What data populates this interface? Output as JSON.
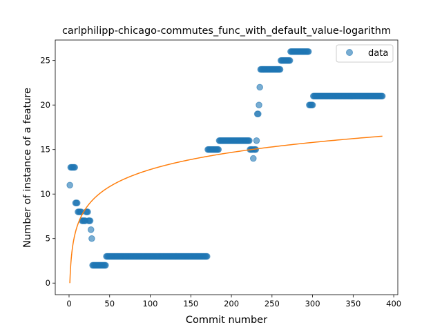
{
  "chart_data": {
    "type": "scatter",
    "title": "carlphilipp-chicago-commutes_func_with_default_value-logarithm",
    "xlabel": "Commit number",
    "ylabel": "Number of instance of a feature",
    "xlim": [
      -17,
      405
    ],
    "ylim": [
      -1.3,
      27.3
    ],
    "xticks": [
      0,
      50,
      100,
      150,
      200,
      250,
      300,
      350,
      400
    ],
    "yticks": [
      0,
      5,
      10,
      15,
      20,
      25
    ],
    "grid": false,
    "legend": {
      "position": "top-right",
      "entries": [
        "data"
      ]
    },
    "colors": {
      "data": "#1f77b4",
      "fit": "#ff7f0e"
    },
    "segments": [
      {
        "from": 1,
        "to": 1,
        "value": 11
      },
      {
        "from": 2,
        "to": 7,
        "value": 13
      },
      {
        "from": 8,
        "to": 10,
        "value": 9
      },
      {
        "from": 11,
        "to": 15,
        "value": 8
      },
      {
        "from": 16,
        "to": 20,
        "value": 7
      },
      {
        "from": 21,
        "to": 23,
        "value": 8
      },
      {
        "from": 24,
        "to": 26,
        "value": 7
      },
      {
        "from": 27,
        "to": 27,
        "value": 6
      },
      {
        "from": 28,
        "to": 28,
        "value": 5
      },
      {
        "from": 29,
        "to": 45,
        "value": 2
      },
      {
        "from": 46,
        "to": 170,
        "value": 3
      },
      {
        "from": 171,
        "to": 184,
        "value": 15
      },
      {
        "from": 185,
        "to": 222,
        "value": 16
      },
      {
        "from": 223,
        "to": 226,
        "value": 15
      },
      {
        "from": 227,
        "to": 227,
        "value": 14
      },
      {
        "from": 228,
        "to": 230,
        "value": 15
      },
      {
        "from": 231,
        "to": 231,
        "value": 16
      },
      {
        "from": 232,
        "to": 233,
        "value": 19
      },
      {
        "from": 234,
        "to": 234,
        "value": 20
      },
      {
        "from": 235,
        "to": 235,
        "value": 22
      },
      {
        "from": 236,
        "to": 260,
        "value": 24
      },
      {
        "from": 261,
        "to": 272,
        "value": 25
      },
      {
        "from": 273,
        "to": 295,
        "value": 26
      },
      {
        "from": 296,
        "to": 300,
        "value": 20
      },
      {
        "from": 301,
        "to": 386,
        "value": 21
      }
    ],
    "fit": {
      "label": "",
      "formula": "a*ln(x)+b",
      "a": 2.77,
      "b": 0,
      "x_range": [
        1,
        386
      ]
    }
  }
}
